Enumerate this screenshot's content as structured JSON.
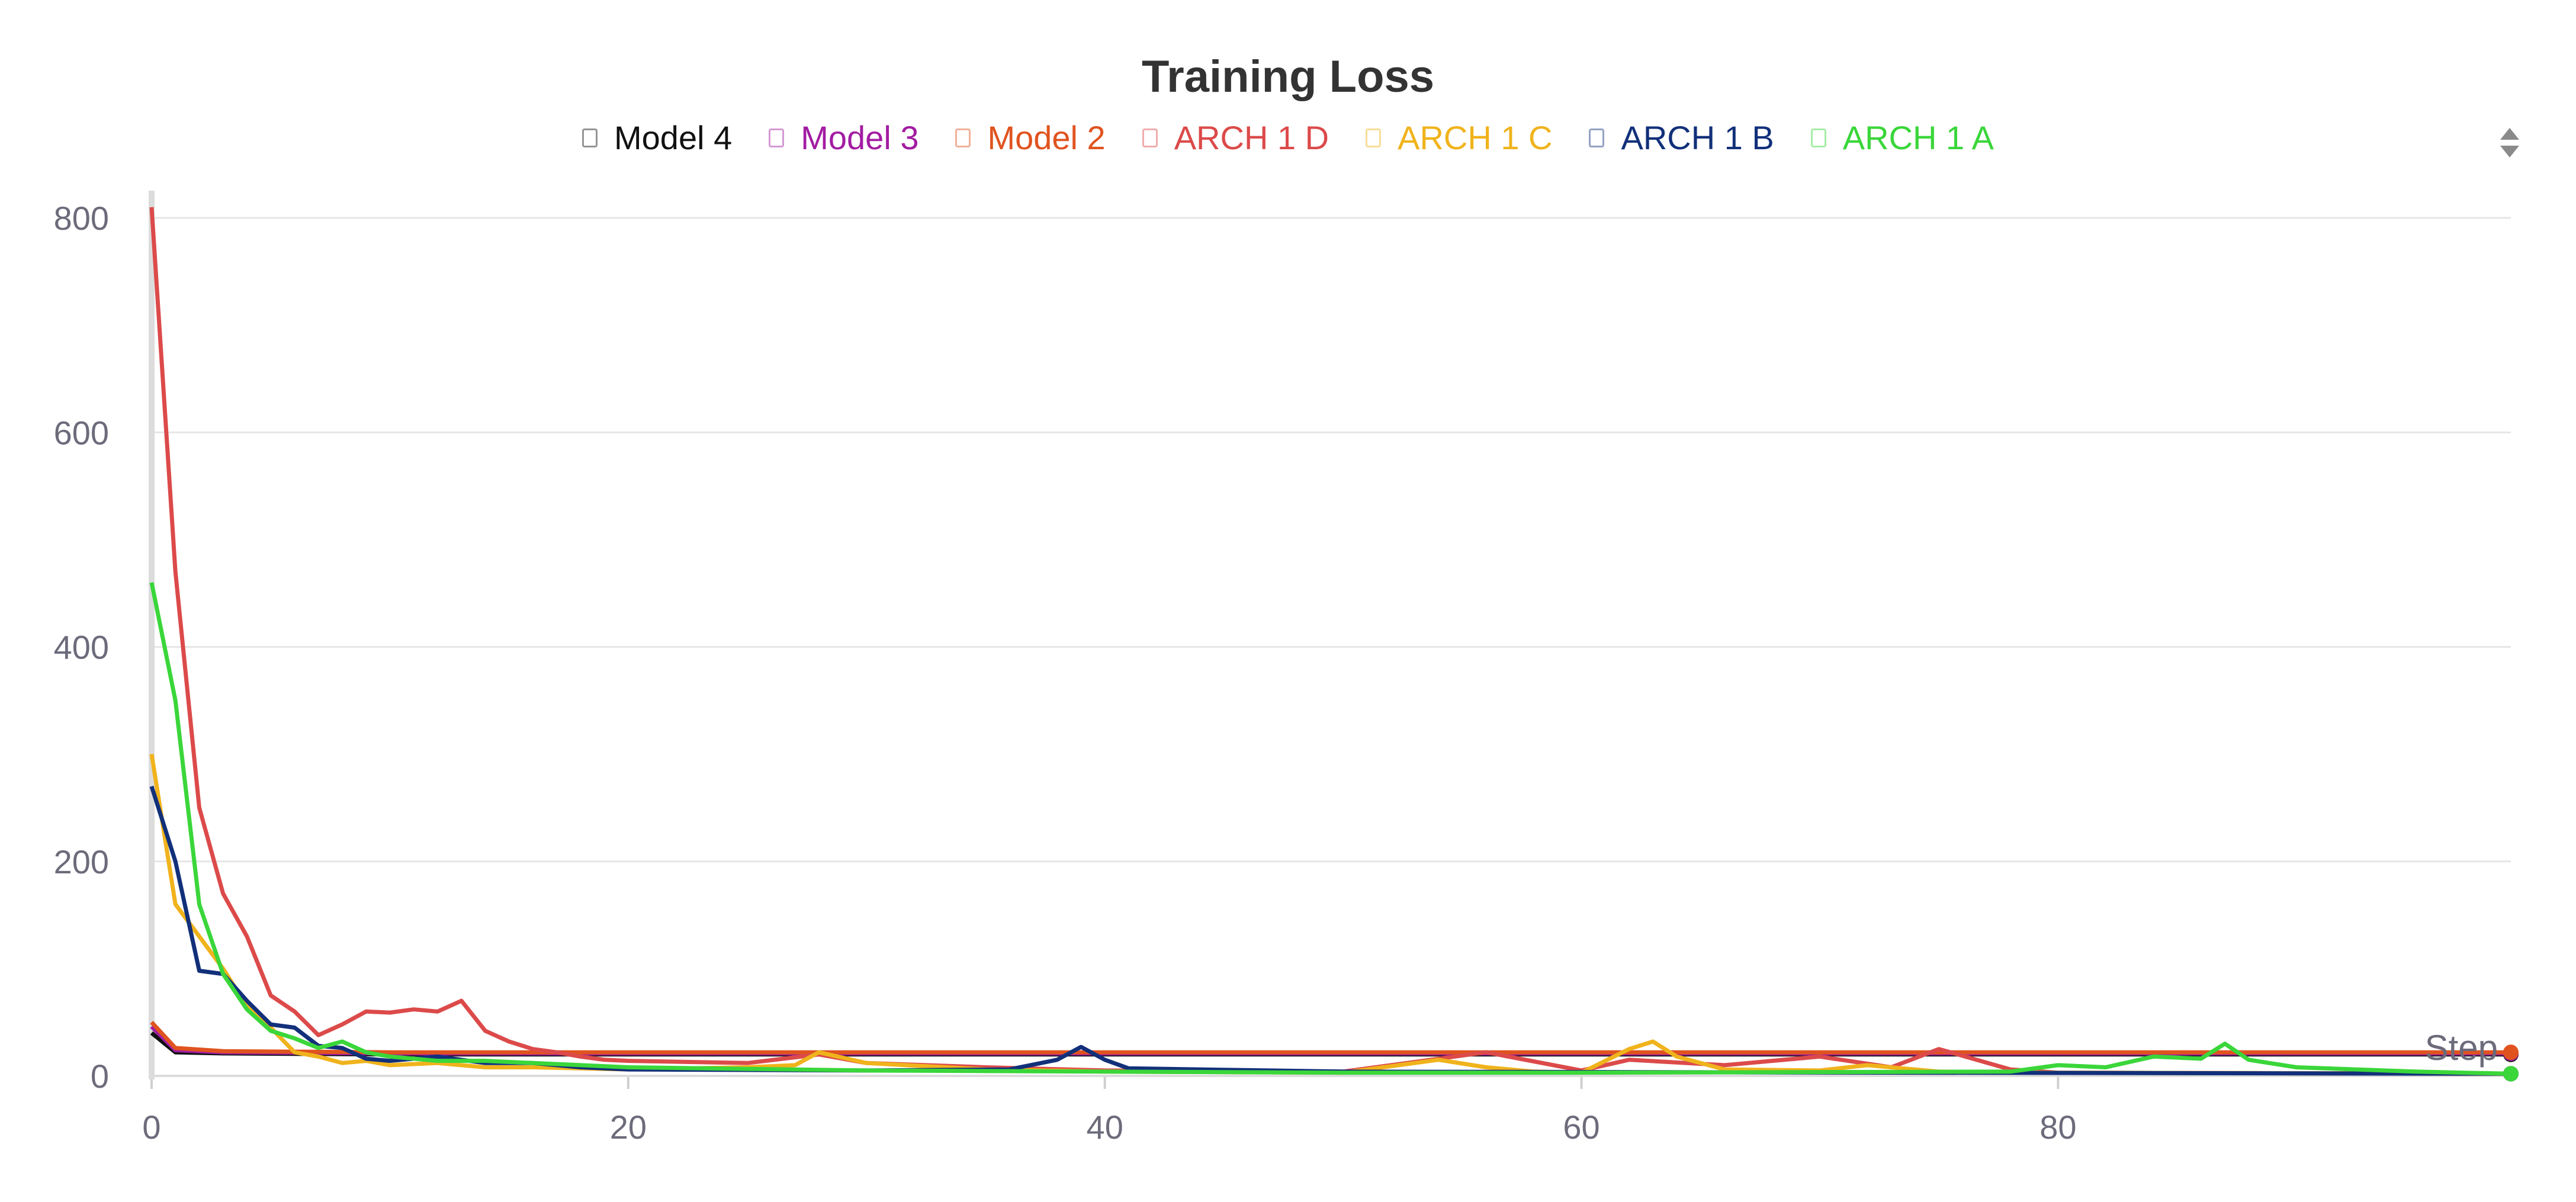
{
  "chart_data": {
    "type": "line",
    "title": "Training Loss",
    "xlabel": "Step",
    "ylabel": "",
    "xlim": [
      0,
      99
    ],
    "ylim": [
      0,
      800
    ],
    "xticks": [
      0,
      20,
      40,
      60,
      80
    ],
    "yticks": [
      0,
      200,
      400,
      600,
      800
    ],
    "grid": true,
    "legend_placement": "top-center",
    "series": [
      {
        "name": "Model 4",
        "color": "#111111",
        "x": [
          0,
          1,
          3,
          10,
          20,
          40,
          60,
          80,
          99
        ],
        "y": [
          40,
          22,
          21,
          20,
          20,
          20,
          20,
          20,
          20
        ]
      },
      {
        "name": "Model 3",
        "color": "#a21ca2",
        "x": [
          0,
          1,
          3,
          10,
          20,
          40,
          60,
          80,
          99
        ],
        "y": [
          46,
          24,
          22,
          21,
          21,
          21,
          21,
          21,
          21
        ]
      },
      {
        "name": "Model 2",
        "color": "#e0531f",
        "x": [
          0,
          1,
          3,
          10,
          20,
          40,
          60,
          80,
          99
        ],
        "y": [
          50,
          26,
          23,
          22,
          22,
          22,
          22,
          22,
          22
        ]
      },
      {
        "name": "ARCH 1 D",
        "color": "#dc4a4a",
        "x": [
          0,
          1,
          2,
          3,
          4,
          5,
          6,
          7,
          8,
          9,
          10,
          11,
          12,
          13,
          14,
          15,
          16,
          17,
          18,
          19,
          20,
          25,
          28,
          30,
          35,
          40,
          50,
          56,
          60,
          62,
          66,
          70,
          73,
          75,
          78,
          80,
          99
        ],
        "y": [
          810,
          470,
          250,
          170,
          130,
          75,
          60,
          38,
          48,
          60,
          59,
          62,
          60,
          70,
          42,
          32,
          25,
          22,
          18,
          15,
          14,
          12,
          20,
          12,
          8,
          5,
          4,
          22,
          5,
          15,
          10,
          18,
          8,
          25,
          6,
          3,
          2
        ]
      },
      {
        "name": "ARCH 1 C",
        "color": "#f0b31c",
        "x": [
          0,
          1,
          2,
          3,
          4,
          5,
          6,
          7,
          8,
          9,
          10,
          12,
          14,
          16,
          18,
          20,
          25,
          27,
          28,
          30,
          35,
          40,
          50,
          54,
          56,
          58,
          60,
          62,
          63,
          64,
          66,
          70,
          72,
          75,
          80,
          99
        ],
        "y": [
          300,
          160,
          130,
          100,
          65,
          45,
          22,
          18,
          12,
          14,
          10,
          12,
          8,
          8,
          7,
          6,
          8,
          10,
          22,
          12,
          6,
          4,
          3,
          15,
          8,
          4,
          3,
          25,
          32,
          18,
          6,
          5,
          10,
          4,
          3,
          2
        ]
      },
      {
        "name": "ARCH 1 B",
        "color": "#12307a",
        "x": [
          0,
          1,
          2,
          3,
          4,
          5,
          6,
          7,
          8,
          9,
          10,
          12,
          14,
          16,
          18,
          20,
          30,
          36,
          38,
          39,
          40,
          41,
          50,
          99
        ],
        "y": [
          270,
          200,
          98,
          95,
          70,
          48,
          45,
          28,
          26,
          16,
          14,
          18,
          12,
          12,
          8,
          6,
          5,
          6,
          15,
          27,
          15,
          7,
          4,
          2
        ]
      },
      {
        "name": "ARCH 1 A",
        "color": "#3ad63a",
        "x": [
          0,
          1,
          2,
          3,
          4,
          5,
          6,
          7,
          8,
          9,
          10,
          12,
          14,
          16,
          18,
          20,
          30,
          40,
          50,
          60,
          78,
          80,
          82,
          84,
          86,
          87,
          88,
          90,
          95,
          99
        ],
        "y": [
          460,
          350,
          160,
          95,
          62,
          42,
          35,
          26,
          32,
          22,
          18,
          14,
          14,
          12,
          10,
          8,
          5,
          4,
          3,
          3,
          4,
          10,
          8,
          18,
          16,
          30,
          15,
          8,
          4,
          2
        ]
      }
    ]
  },
  "controls": {
    "sort_icon": "sort-arrows-icon"
  }
}
